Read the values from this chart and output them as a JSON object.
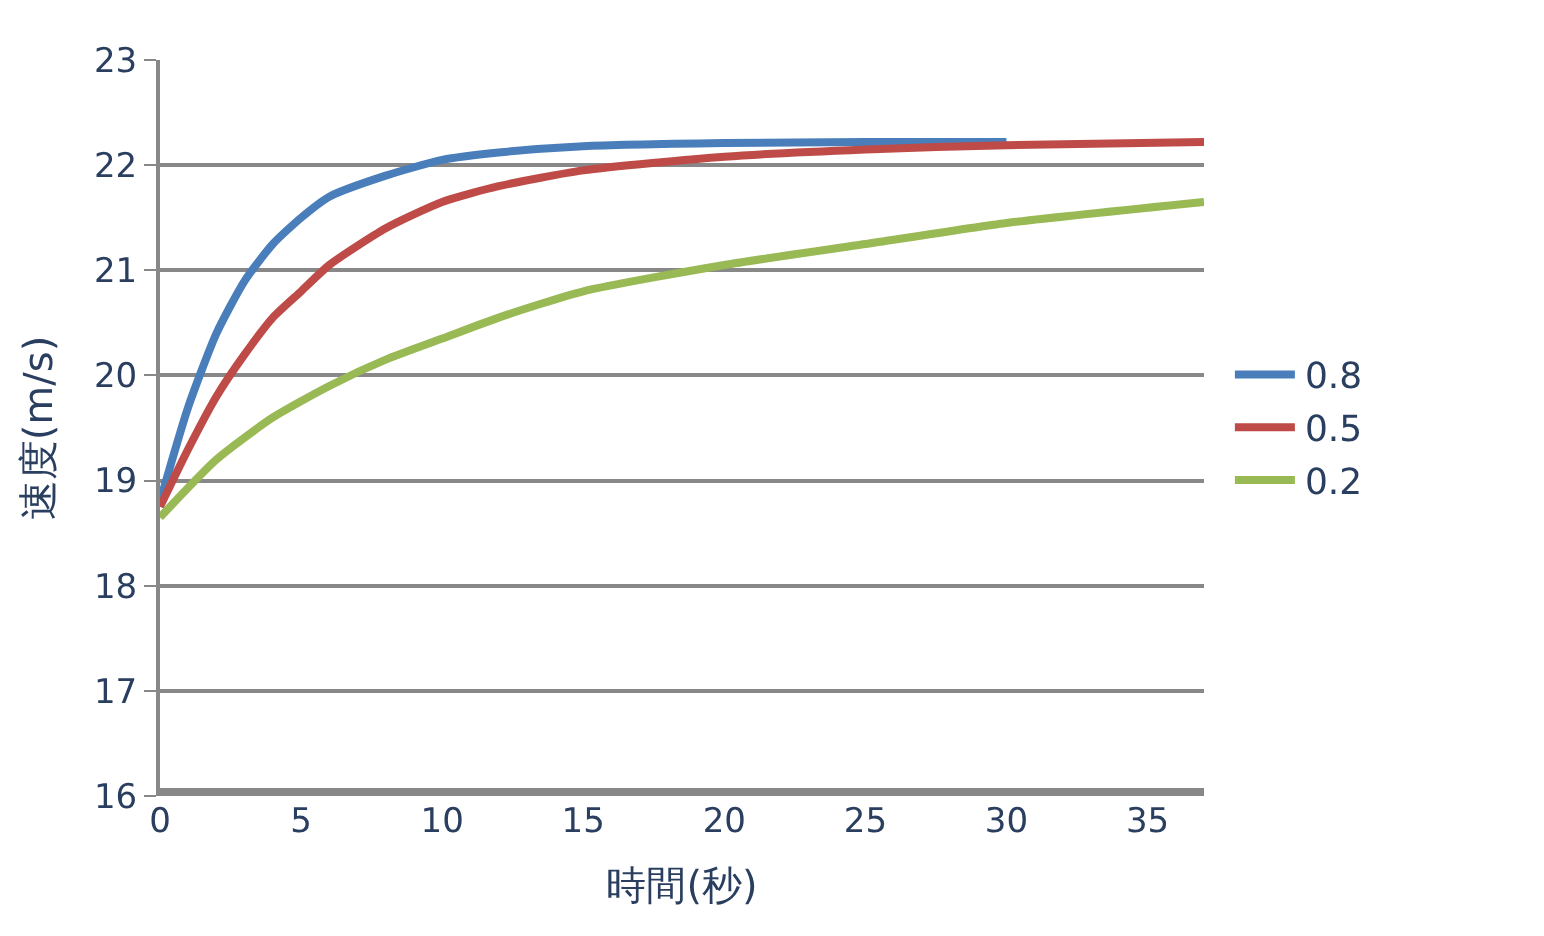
{
  "chart_data": {
    "type": "line",
    "xlabel": "時間(秒)",
    "ylabel": "速度(m/s)",
    "xlim": [
      0,
      37
    ],
    "xticks": [
      0,
      5,
      10,
      15,
      20,
      25,
      30,
      35
    ],
    "ylim": [
      16,
      23
    ],
    "yticks": [
      16,
      17,
      18,
      19,
      20,
      21,
      22,
      23
    ],
    "grid": "y",
    "legend": "right",
    "marker": "none",
    "line_style": "solid",
    "series": [
      {
        "name": "0.8",
        "color": "#4a7ebb",
        "x": [
          0,
          1,
          2,
          3,
          4,
          5,
          6,
          8,
          10,
          12,
          15,
          20,
          25,
          30
        ],
        "values": [
          18.8,
          19.7,
          20.4,
          20.9,
          21.25,
          21.5,
          21.7,
          21.9,
          22.05,
          22.12,
          22.18,
          22.21,
          22.22,
          22.22
        ]
      },
      {
        "name": "0.5",
        "color": "#be4b48",
        "x": [
          0,
          1,
          2,
          3,
          4,
          5,
          6,
          8,
          10,
          12,
          15,
          20,
          25,
          30,
          37
        ],
        "values": [
          18.75,
          19.3,
          19.8,
          20.2,
          20.55,
          20.8,
          21.05,
          21.4,
          21.65,
          21.8,
          21.95,
          22.08,
          22.15,
          22.19,
          22.22
        ]
      },
      {
        "name": "0.2",
        "color": "#98b954",
        "x": [
          0,
          2,
          4,
          6,
          8,
          10,
          12,
          15,
          20,
          25,
          30,
          37
        ],
        "values": [
          18.65,
          19.2,
          19.6,
          19.9,
          20.15,
          20.35,
          20.55,
          20.8,
          21.05,
          21.25,
          21.45,
          21.65
        ]
      }
    ]
  }
}
